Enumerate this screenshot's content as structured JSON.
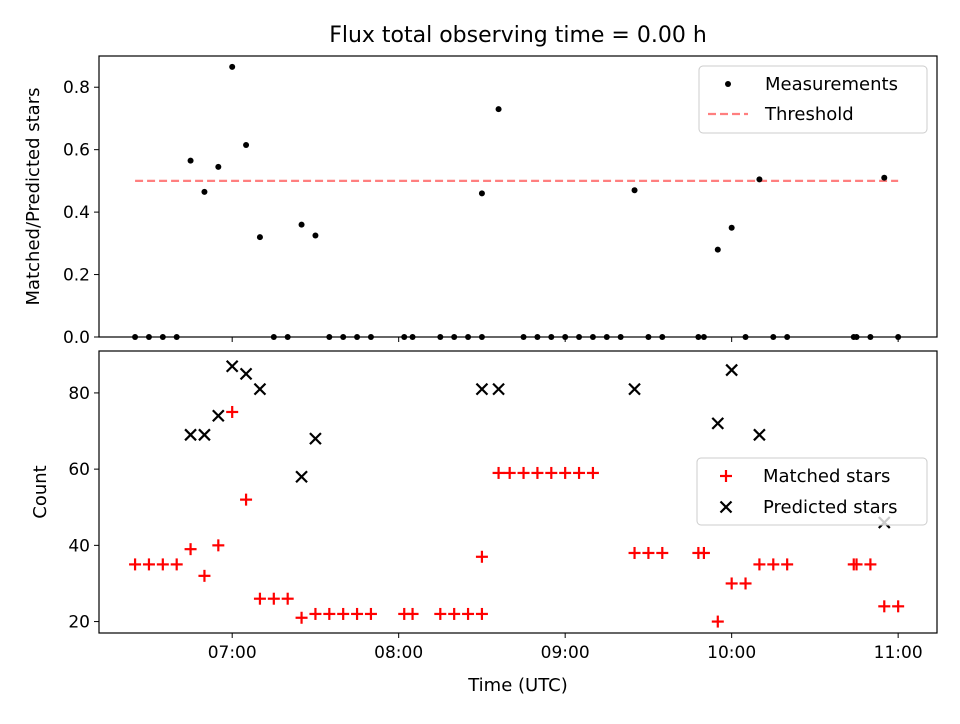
{
  "figure": {
    "title": "Flux total observing time = 0.00 h"
  },
  "chart_data": [
    {
      "type": "scatter",
      "ylabel": "Matched/Predicted stars",
      "ylim": [
        0,
        0.9
      ],
      "yticks": [
        0.0,
        0.2,
        0.4,
        0.6,
        0.8
      ],
      "ytick_labels": [
        "0.0",
        "0.2",
        "0.4",
        "0.6",
        "0.8"
      ],
      "xlim": [
        "06:12",
        "11:14"
      ],
      "legend": {
        "position": "top-right",
        "entries": [
          "Measurements",
          "Threshold"
        ]
      },
      "threshold": {
        "name": "Threshold",
        "value": 0.5,
        "x_start": "06:25",
        "x_end": "11:00",
        "color": "#ff7f7f"
      },
      "series": [
        {
          "name": "Measurements",
          "marker": "dot",
          "color": "#000000",
          "points": [
            [
              "06:25",
              0
            ],
            [
              "06:30",
              0
            ],
            [
              "06:35",
              0
            ],
            [
              "06:40",
              0
            ],
            [
              "06:45",
              0.565
            ],
            [
              "06:50",
              0.465
            ],
            [
              "06:55",
              0.545
            ],
            [
              "07:00",
              0.865
            ],
            [
              "07:05",
              0.615
            ],
            [
              "07:10",
              0.32
            ],
            [
              "07:15",
              0
            ],
            [
              "07:20",
              0
            ],
            [
              "07:25",
              0.36
            ],
            [
              "07:30",
              0.325
            ],
            [
              "07:35",
              0
            ],
            [
              "07:40",
              0
            ],
            [
              "07:45",
              0
            ],
            [
              "07:50",
              0
            ],
            [
              "08:02",
              0
            ],
            [
              "08:05",
              0
            ],
            [
              "08:15",
              0
            ],
            [
              "08:20",
              0
            ],
            [
              "08:25",
              0
            ],
            [
              "08:30",
              0
            ],
            [
              "08:30",
              0.46
            ],
            [
              "08:36",
              0.73
            ],
            [
              "08:45",
              0
            ],
            [
              "08:50",
              0
            ],
            [
              "08:55",
              0
            ],
            [
              "09:00",
              0
            ],
            [
              "09:05",
              0
            ],
            [
              "09:10",
              0
            ],
            [
              "09:15",
              0
            ],
            [
              "09:20",
              0
            ],
            [
              "09:25",
              0.47
            ],
            [
              "09:30",
              0
            ],
            [
              "09:35",
              0
            ],
            [
              "09:48",
              0
            ],
            [
              "09:50",
              0
            ],
            [
              "09:55",
              0.28
            ],
            [
              "10:00",
              0.35
            ],
            [
              "10:05",
              0
            ],
            [
              "10:10",
              0.505
            ],
            [
              "10:15",
              0
            ],
            [
              "10:20",
              0
            ],
            [
              "10:44",
              0
            ],
            [
              "10:45",
              0
            ],
            [
              "10:50",
              0
            ],
            [
              "10:55",
              0.51
            ],
            [
              "11:00",
              0
            ]
          ]
        }
      ]
    },
    {
      "type": "scatter",
      "xlabel": "Time (UTC)",
      "ylabel": "Count",
      "ylim": [
        17,
        91
      ],
      "yticks": [
        20,
        40,
        60,
        80
      ],
      "ytick_labels": [
        "20",
        "40",
        "60",
        "80"
      ],
      "xlim": [
        "06:12",
        "11:14"
      ],
      "xticks": [
        "07:00",
        "08:00",
        "09:00",
        "10:00",
        "11:00"
      ],
      "xtick_labels": [
        "07:00",
        "08:00",
        "09:00",
        "10:00",
        "11:00"
      ],
      "legend": {
        "position": "center-right",
        "entries": [
          "Matched stars",
          "Predicted stars"
        ]
      },
      "series": [
        {
          "name": "Matched stars",
          "marker": "plus",
          "color": "#ff0000",
          "points": [
            [
              "06:25",
              35
            ],
            [
              "06:30",
              35
            ],
            [
              "06:35",
              35
            ],
            [
              "06:40",
              35
            ],
            [
              "06:45",
              39
            ],
            [
              "06:50",
              32
            ],
            [
              "06:55",
              40
            ],
            [
              "07:00",
              75
            ],
            [
              "07:05",
              52
            ],
            [
              "07:10",
              26
            ],
            [
              "07:15",
              26
            ],
            [
              "07:20",
              26
            ],
            [
              "07:25",
              21
            ],
            [
              "07:30",
              22
            ],
            [
              "07:35",
              22
            ],
            [
              "07:40",
              22
            ],
            [
              "07:45",
              22
            ],
            [
              "07:50",
              22
            ],
            [
              "08:02",
              22
            ],
            [
              "08:05",
              22
            ],
            [
              "08:15",
              22
            ],
            [
              "08:20",
              22
            ],
            [
              "08:25",
              22
            ],
            [
              "08:30",
              22
            ],
            [
              "08:30",
              37
            ],
            [
              "08:36",
              59
            ],
            [
              "08:40",
              59
            ],
            [
              "08:45",
              59
            ],
            [
              "08:50",
              59
            ],
            [
              "08:55",
              59
            ],
            [
              "09:00",
              59
            ],
            [
              "09:05",
              59
            ],
            [
              "09:10",
              59
            ],
            [
              "09:25",
              38
            ],
            [
              "09:30",
              38
            ],
            [
              "09:35",
              38
            ],
            [
              "09:48",
              38
            ],
            [
              "09:50",
              38
            ],
            [
              "09:55",
              20
            ],
            [
              "10:00",
              30
            ],
            [
              "10:05",
              30
            ],
            [
              "10:10",
              35
            ],
            [
              "10:15",
              35
            ],
            [
              "10:20",
              35
            ],
            [
              "10:44",
              35
            ],
            [
              "10:45",
              35
            ],
            [
              "10:50",
              35
            ],
            [
              "10:55",
              24
            ],
            [
              "11:00",
              24
            ]
          ]
        },
        {
          "name": "Predicted stars",
          "marker": "x",
          "color": "#000000",
          "points": [
            [
              "06:45",
              69
            ],
            [
              "06:50",
              69
            ],
            [
              "06:55",
              74
            ],
            [
              "07:00",
              87
            ],
            [
              "07:05",
              85
            ],
            [
              "07:10",
              81
            ],
            [
              "07:25",
              58
            ],
            [
              "07:30",
              68
            ],
            [
              "08:30",
              81
            ],
            [
              "08:36",
              81
            ],
            [
              "09:25",
              81
            ],
            [
              "09:55",
              72
            ],
            [
              "10:00",
              86
            ],
            [
              "10:10",
              69
            ],
            [
              "10:55",
              46
            ]
          ]
        }
      ]
    }
  ]
}
